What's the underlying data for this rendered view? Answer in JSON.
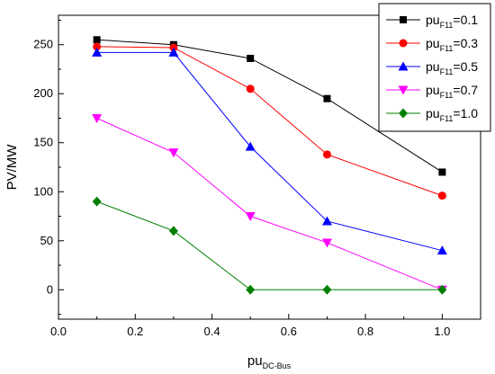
{
  "chart_data": {
    "type": "line",
    "x": [
      0.1,
      0.3,
      0.5,
      0.7,
      1.0
    ],
    "xlabel": "pu",
    "xlabel_sub": "DC-Bus",
    "ylabel": "PV/MW",
    "xlim": [
      0.0,
      1.1
    ],
    "ylim": [
      -30,
      280
    ],
    "xticks": [
      "0.0",
      "0.2",
      "0.4",
      "0.6",
      "0.8",
      "1.0"
    ],
    "xtick_values": [
      0.0,
      0.2,
      0.4,
      0.6,
      0.8,
      1.0
    ],
    "yticks": [
      "0",
      "50",
      "100",
      "150",
      "200",
      "250"
    ],
    "ytick_values": [
      0,
      50,
      100,
      150,
      200,
      250
    ],
    "grid": false,
    "legend_position": "top-right",
    "series": [
      {
        "name": "pu",
        "name_sub": "F11",
        "name_suffix": "=0.1",
        "color": "#000000",
        "marker": "square",
        "values": [
          255,
          250,
          236,
          195,
          120
        ]
      },
      {
        "name": "pu",
        "name_sub": "F11",
        "name_suffix": "=0.3",
        "color": "#ff0000",
        "marker": "circle",
        "values": [
          248,
          247,
          205,
          138,
          96
        ]
      },
      {
        "name": "pu",
        "name_sub": "F11",
        "name_suffix": "=0.5",
        "color": "#0000ff",
        "marker": "triangle-up",
        "values": [
          242,
          242,
          146,
          70,
          40
        ]
      },
      {
        "name": "pu",
        "name_sub": "F11",
        "name_suffix": "=0.7",
        "color": "#ff00ff",
        "marker": "triangle-down",
        "values": [
          175,
          140,
          75,
          48,
          0
        ]
      },
      {
        "name": "pu",
        "name_sub": "F11",
        "name_suffix": "=1.0",
        "color": "#008000",
        "marker": "diamond",
        "values": [
          90,
          60,
          0,
          0,
          0
        ]
      }
    ]
  }
}
